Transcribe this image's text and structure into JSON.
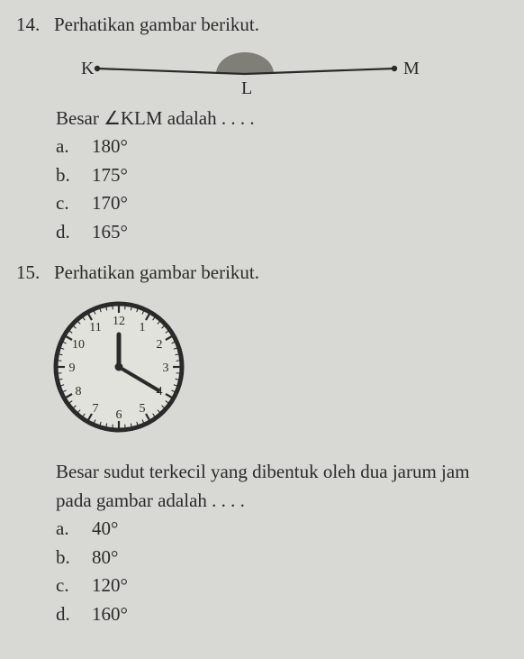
{
  "q14": {
    "number": "14.",
    "prompt": "Perhatikan gambar berikut.",
    "diagram": {
      "label_k": "K",
      "label_l": "L",
      "label_m": "M",
      "line_color": "#2a2a2a",
      "arc_fill": "#7f7f78"
    },
    "subprompt": "Besar ∠KLM adalah . . . .",
    "options": {
      "a": {
        "letter": "a.",
        "text": "180°"
      },
      "b": {
        "letter": "b.",
        "text": "175°"
      },
      "c": {
        "letter": "c.",
        "text": "170°"
      },
      "d": {
        "letter": "d.",
        "text": "165°"
      }
    }
  },
  "q15": {
    "number": "15.",
    "prompt": "Perhatikan gambar berikut.",
    "clock": {
      "face_border": "#2a2a2a",
      "face_fill": "#e2e2dc",
      "hand_color": "#2a2a2a",
      "tick_color": "#2a2a2a",
      "num_color": "#2a2a2a",
      "hour_at": 12,
      "minute_at": 4,
      "numerals": [
        "12",
        "1",
        "2",
        "3",
        "4",
        "5",
        "6",
        "7",
        "8",
        "9",
        "10",
        "11"
      ]
    },
    "subprompt": "Besar sudut terkecil yang dibentuk oleh dua jarum jam pada gambar adalah . . . .",
    "options": {
      "a": {
        "letter": "a.",
        "text": "40°"
      },
      "b": {
        "letter": "b.",
        "text": "80°"
      },
      "c": {
        "letter": "c.",
        "text": "120°"
      },
      "d": {
        "letter": "d.",
        "text": "160°"
      }
    }
  },
  "colors": {
    "bg": "#d8d9d4",
    "text": "#2a2a2a"
  }
}
